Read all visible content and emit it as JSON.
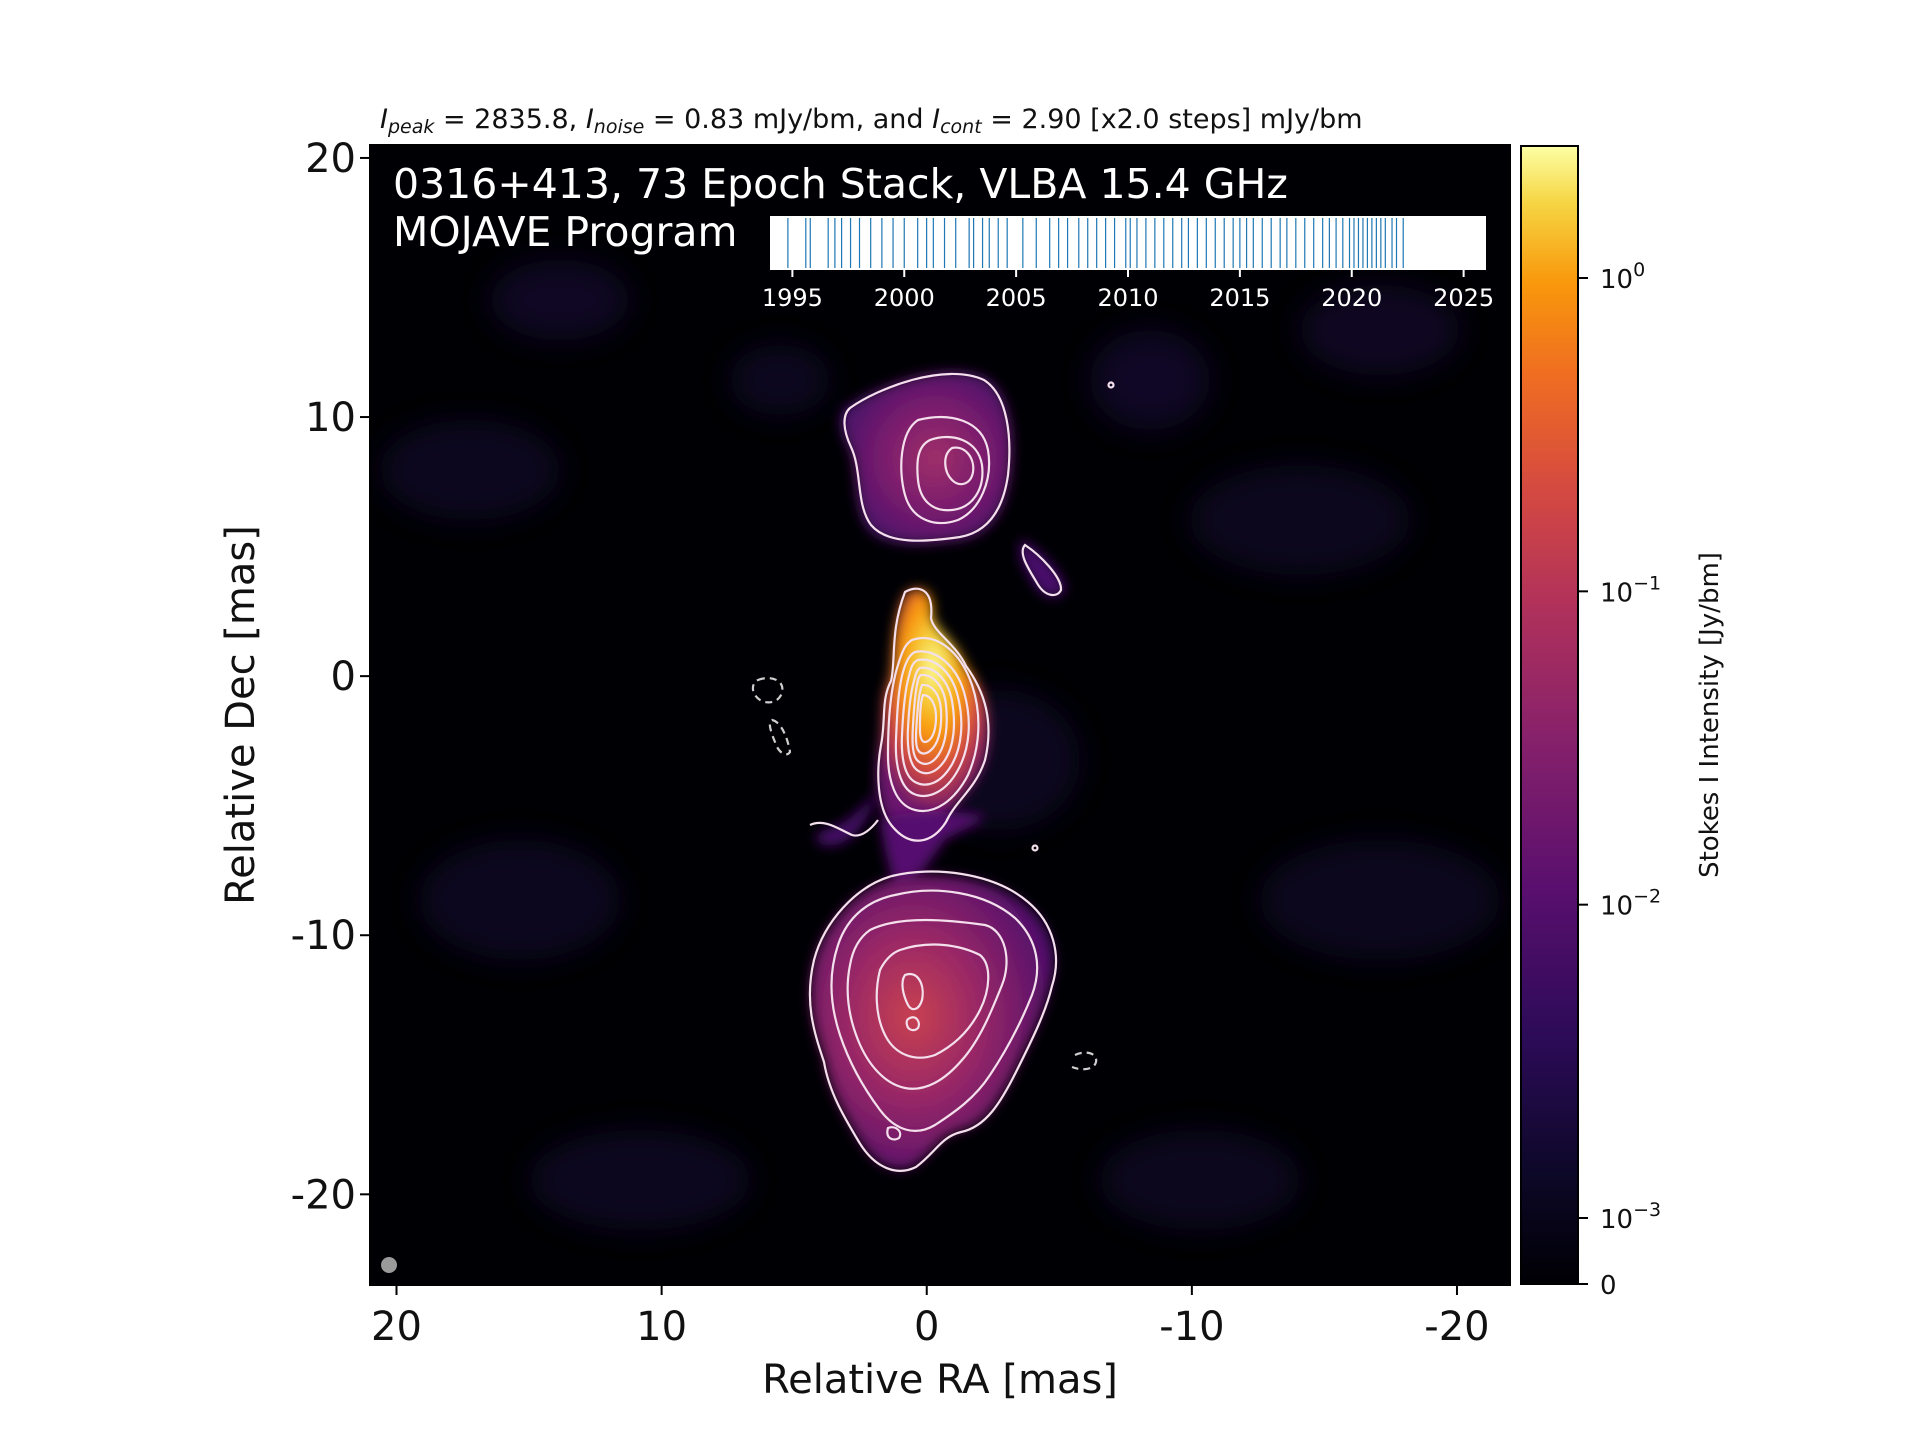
{
  "chart_data": {
    "type": "heatmap",
    "title_parts": {
      "peak_sym": "I",
      "peak_sub": "peak",
      "peak_text": " = 2835.8, ",
      "noise_sym": "I",
      "noise_sub": "noise",
      "noise_text": " = 0.83 mJy/bm, and ",
      "cont_sym": "I",
      "cont_sub": "cont",
      "cont_text": " = 2.90 [x2.0 steps] mJy/bm"
    },
    "overlay_line1": "0316+413, 73 Epoch Stack, VLBA 15.4 GHz",
    "overlay_line2": "MOJAVE Program",
    "xlabel": "Relative RA [mas]",
    "ylabel": "Relative Dec [mas]",
    "xlim": [
      21,
      -22
    ],
    "ylim": [
      -23.5,
      20.5
    ],
    "xticks": [
      20,
      10,
      0,
      -10,
      -20
    ],
    "yticks": [
      20,
      10,
      0,
      -10,
      -20
    ],
    "colorbar": {
      "label": "Stokes I Intensity [Jy/bm]",
      "scale": "log",
      "colormap": "inferno",
      "ticks": [
        {
          "value": 1.0,
          "base": "10",
          "exp": "0"
        },
        {
          "value": 0.1,
          "base": "10",
          "exp": "−1"
        },
        {
          "value": 0.01,
          "base": "10",
          "exp": "−2"
        },
        {
          "value": 0.001,
          "base": "10",
          "exp": "−3"
        },
        {
          "value": 0,
          "label": "0"
        }
      ]
    },
    "epoch_timeline": {
      "range": [
        1994,
        2026
      ],
      "ticks": [
        "1995",
        "2000",
        "2005",
        "2010",
        "2015",
        "2020",
        "2025"
      ],
      "epochs": [
        1994.8,
        1995.6,
        1995.8,
        1996.6,
        1996.9,
        1997.2,
        1997.6,
        1998.0,
        1998.5,
        1999.0,
        2000.0,
        2000.6,
        2001.0,
        2001.3,
        2001.8,
        2002.3,
        2002.9,
        2003.1,
        2003.5,
        2004.2,
        2004.6,
        2005.3,
        2005.9,
        2006.5,
        2006.9,
        2007.3,
        2007.8,
        2008.2,
        2008.6,
        2009.0,
        2009.4,
        2009.9,
        2010.4,
        2010.8,
        2011.2,
        2011.6,
        2012.0,
        2012.4,
        2012.7,
        2013.1,
        2013.5,
        2013.9,
        2014.3,
        2014.7,
        2015.0,
        2015.3,
        2015.6,
        2016.0,
        2016.4,
        2016.8,
        2017.1,
        2017.5,
        2017.9,
        2018.3,
        2018.7,
        2019.0,
        2019.3,
        2019.6,
        2019.9,
        2020.1,
        2020.3,
        2020.5,
        2020.7,
        2020.9,
        2021.1,
        2021.3,
        2021.5,
        2021.8,
        2022.0,
        2022.3,
        2010.1,
        2003.8,
        1999.5
      ],
      "tick_color": "#1f77b4"
    }
  }
}
